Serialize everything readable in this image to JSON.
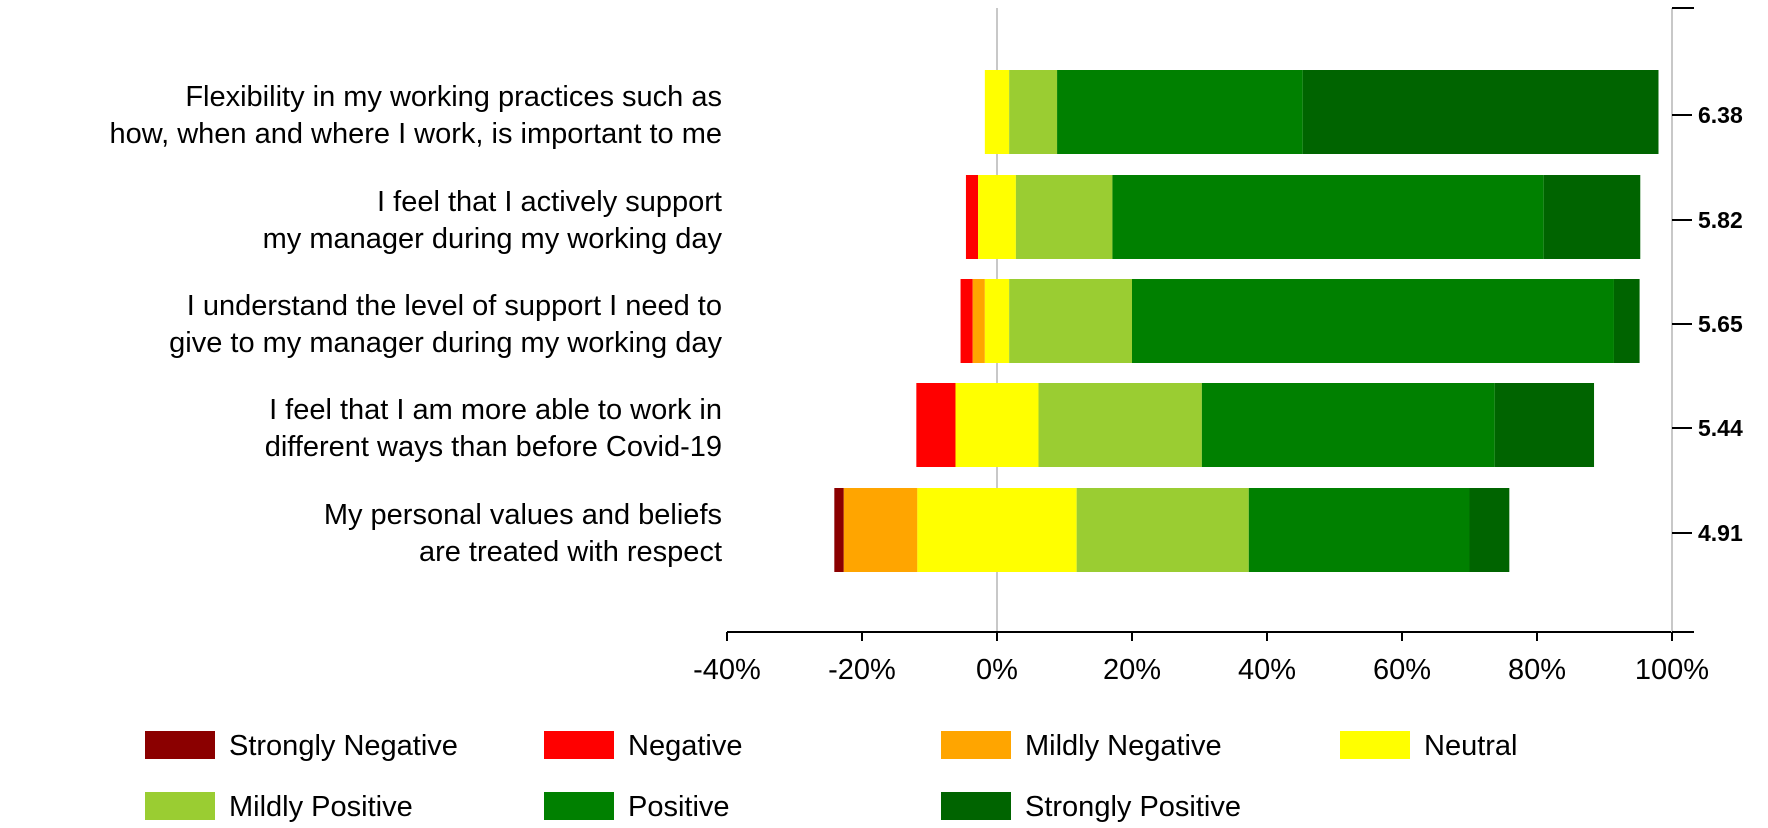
{
  "chart_data": {
    "type": "bar",
    "orientation": "horizontal",
    "stacked": "diverging",
    "title": "",
    "xlabel": "",
    "ylabel": "",
    "xlim": [
      -40,
      100
    ],
    "x_ticks": [
      -40,
      -20,
      0,
      20,
      40,
      60,
      80,
      100
    ],
    "x_tick_labels": [
      "-40%",
      "-20%",
      "0%",
      "20%",
      "40%",
      "60%",
      "80%",
      "100%"
    ],
    "grid": false,
    "legend_position": "bottom",
    "categories": [
      [
        "Flexibility in my working practices such as",
        "how, when and where I work, is important to me"
      ],
      [
        "I feel that I actively support",
        "my manager during my working day"
      ],
      [
        "I understand the level of support I need to",
        "give to my manager during my working day"
      ],
      [
        "I feel that I am more able to work in",
        "different ways than before Covid-19"
      ],
      [
        "My personal values and beliefs",
        "are treated with respect"
      ]
    ],
    "means": [
      "6.38",
      "5.82",
      "5.65",
      "5.44",
      "4.91"
    ],
    "series": [
      {
        "name": "Strongly Negative",
        "color": "#8B0000",
        "values": [
          0,
          0,
          0,
          0,
          1.4
        ]
      },
      {
        "name": "Negative",
        "color": "#FF0000",
        "values": [
          0,
          1.8,
          1.8,
          5.8,
          0
        ]
      },
      {
        "name": "Mildly Negative",
        "color": "#FFA500",
        "values": [
          0,
          0,
          1.8,
          0,
          10.9
        ]
      },
      {
        "name": "Neutral",
        "color": "#FFFF00",
        "values": [
          3.6,
          5.6,
          3.6,
          12.3,
          23.6
        ]
      },
      {
        "name": "Mildly Positive",
        "color": "#9ACD32",
        "values": [
          7.1,
          14.3,
          18.2,
          24.2,
          25.5
        ]
      },
      {
        "name": "Positive",
        "color": "#008000",
        "values": [
          36.4,
          63.9,
          71.4,
          43.4,
          32.7
        ]
      },
      {
        "name": "Strongly Positive",
        "color": "#006400",
        "values": [
          52.7,
          14.3,
          3.8,
          14.7,
          5.9
        ]
      }
    ]
  }
}
